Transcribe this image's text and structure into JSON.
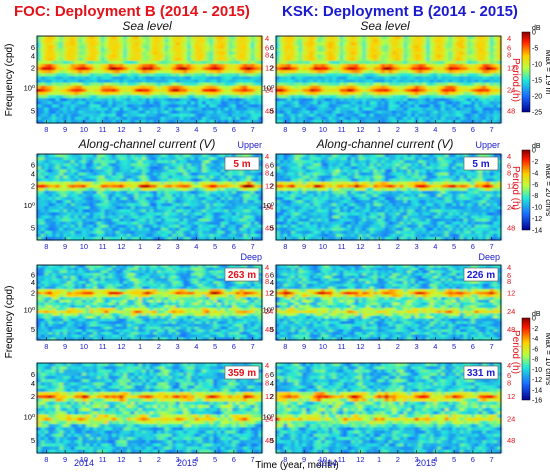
{
  "titles": {
    "left": "FOC: Deployment B (2014 - 2015)",
    "right": "KSK: Deployment B (2014 - 2015)"
  },
  "subtitles": {
    "sea_level": "Sea level",
    "current": "Along-channel current (V)"
  },
  "labels": {
    "ylabel": "Frequency (cpd)",
    "period_label": "Period (h)",
    "xlabel": "Time (year, month)",
    "upper": "Upper",
    "deep": "Deep",
    "freq_ticks": [
      "6",
      "4",
      "2",
      "10⁰",
      "5"
    ],
    "period_ticks": [
      "4",
      "6",
      "8",
      "12",
      "24",
      "48"
    ],
    "years": [
      "2014",
      "2015"
    ]
  },
  "colors": {
    "foc": "#e3121b",
    "ksk": "#1a1ad0"
  },
  "colorbars": [
    {
      "id": "sea",
      "unit": "dB",
      "ticks": [
        "0",
        "-5",
        "-10",
        "-15",
        "-20",
        "-25"
      ],
      "max_label": "Max = 1.9 m"
    },
    {
      "id": "upper",
      "unit": "dB",
      "ticks": [
        "0",
        "-2",
        "-4",
        "-6",
        "-8",
        "-10",
        "-12",
        "-14"
      ],
      "max_label": "Max = 20 cm/s"
    },
    {
      "id": "deep",
      "unit": "dB",
      "ticks": [
        "0",
        "-2",
        "-4",
        "-6",
        "-8",
        "-10",
        "-12",
        "-14",
        "-16"
      ],
      "max_label": "Max = 10 cm/s"
    }
  ],
  "chart_data": [
    {
      "type": "heatmap",
      "station": "FOC",
      "variable": "Sea level",
      "depth": "",
      "x": [
        "8",
        "9",
        "10",
        "11",
        "12",
        "1",
        "2",
        "3",
        "4",
        "5",
        "6",
        "7"
      ],
      "dominant_periods_h": [
        12,
        24
      ]
    },
    {
      "type": "heatmap",
      "station": "KSK",
      "variable": "Sea level",
      "depth": "",
      "x": [
        "8",
        "9",
        "10",
        "11",
        "12",
        "1",
        "2",
        "3",
        "4",
        "5",
        "6",
        "7"
      ],
      "dominant_periods_h": [
        12,
        24
      ]
    },
    {
      "type": "heatmap",
      "station": "FOC",
      "variable": "Along-channel current (V)",
      "depth": "5 m",
      "layer": "Upper",
      "x": [
        "8",
        "9",
        "10",
        "11",
        "12",
        "1",
        "2",
        "3",
        "4",
        "5",
        "6",
        "7"
      ],
      "dominant_periods_h": [
        12
      ]
    },
    {
      "type": "heatmap",
      "station": "KSK",
      "variable": "Along-channel current (V)",
      "depth": "5 m",
      "layer": "Upper",
      "x": [
        "8",
        "9",
        "10",
        "11",
        "12",
        "1",
        "2",
        "3",
        "4",
        "5",
        "6",
        "7"
      ],
      "dominant_periods_h": [
        12
      ]
    },
    {
      "type": "heatmap",
      "station": "FOC",
      "variable": "Along-channel current (V)",
      "depth": "263 m",
      "layer": "Deep",
      "x": [
        "8",
        "9",
        "10",
        "11",
        "12",
        "1",
        "2",
        "3",
        "4",
        "5",
        "6",
        "7"
      ],
      "dominant_periods_h": [
        12,
        24
      ]
    },
    {
      "type": "heatmap",
      "station": "KSK",
      "variable": "Along-channel current (V)",
      "depth": "226 m",
      "layer": "Deep",
      "x": [
        "8",
        "9",
        "10",
        "11",
        "12",
        "1",
        "2",
        "3",
        "4",
        "5",
        "6",
        "7"
      ],
      "dominant_periods_h": [
        12,
        24
      ]
    },
    {
      "type": "heatmap",
      "station": "FOC",
      "variable": "Along-channel current (V)",
      "depth": "359 m",
      "layer": "Deep",
      "x": [
        "8",
        "9",
        "10",
        "11",
        "12",
        "1",
        "2",
        "3",
        "4",
        "5",
        "6",
        "7"
      ],
      "dominant_periods_h": [
        12,
        24
      ]
    },
    {
      "type": "heatmap",
      "station": "KSK",
      "variable": "Along-channel current (V)",
      "depth": "331 m",
      "layer": "Deep",
      "x": [
        "8",
        "9",
        "10",
        "11",
        "12",
        "1",
        "2",
        "3",
        "4",
        "5",
        "6",
        "7"
      ],
      "dominant_periods_h": [
        12,
        24
      ]
    }
  ]
}
